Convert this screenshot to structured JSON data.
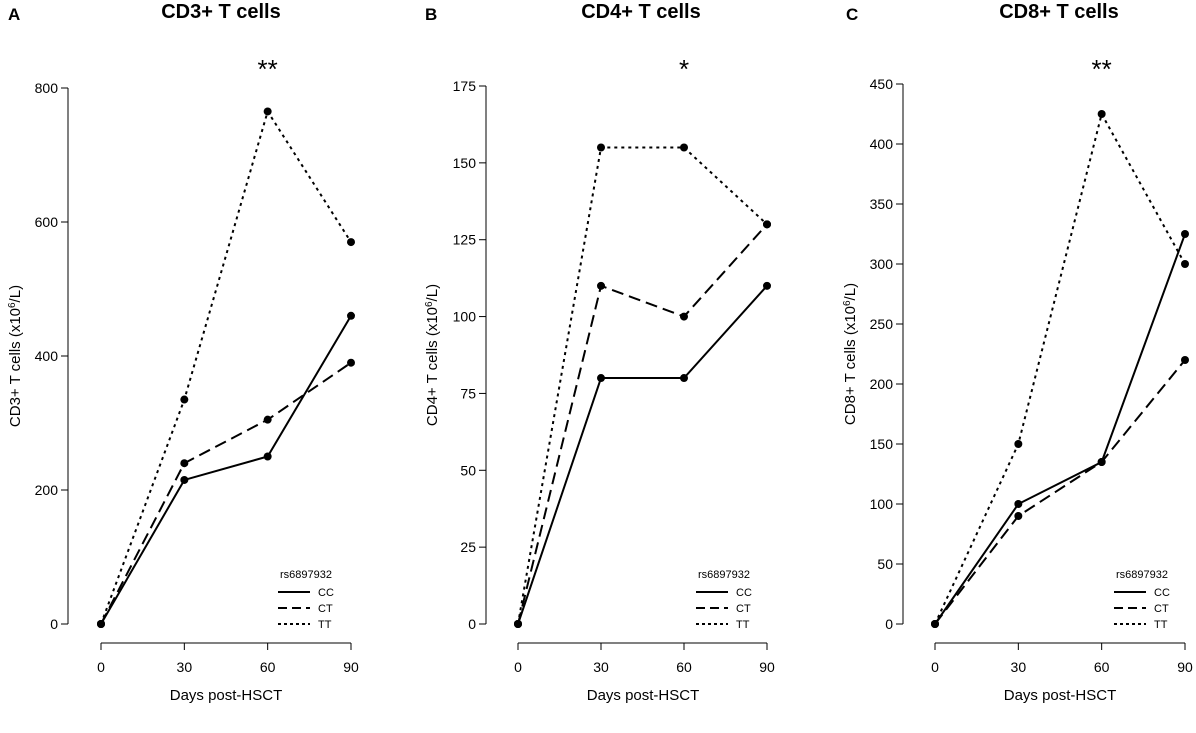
{
  "chart_data": [
    {
      "type": "line",
      "panel": "A",
      "title": "CD3+ T cells",
      "xlabel": "Days post-HSCT",
      "ylabel_main": "CD3+ T cells (x10",
      "ylabel_sup": "6",
      "ylabel_end": "/L)",
      "x": [
        0,
        30,
        60,
        90
      ],
      "xticks": [
        0,
        30,
        60,
        90
      ],
      "yticks": [
        0,
        200,
        400,
        600,
        800
      ],
      "ylim": [
        0,
        800
      ],
      "significance": {
        "label": "**",
        "x": 60
      },
      "legend": {
        "title": "rs6897932",
        "entries": [
          "CC",
          "CT",
          "TT"
        ]
      },
      "series": [
        {
          "name": "CC",
          "style": "solid",
          "values": [
            0,
            215,
            250,
            460
          ]
        },
        {
          "name": "CT",
          "style": "dashed",
          "values": [
            0,
            240,
            305,
            390
          ]
        },
        {
          "name": "TT",
          "style": "dotted",
          "values": [
            0,
            335,
            765,
            570
          ]
        }
      ]
    },
    {
      "type": "line",
      "panel": "B",
      "title": "CD4+ T cells",
      "xlabel": "Days post-HSCT",
      "ylabel_main": "CD4+ T cells (x10",
      "ylabel_sup": "6",
      "ylabel_end": "/L)",
      "x": [
        0,
        30,
        60,
        90
      ],
      "xticks": [
        0,
        30,
        60,
        90
      ],
      "yticks": [
        0,
        25,
        50,
        75,
        100,
        125,
        150,
        175
      ],
      "ylim": [
        0,
        175
      ],
      "significance": {
        "label": "*",
        "x": 60
      },
      "legend": {
        "title": "rs6897932",
        "entries": [
          "CC",
          "CT",
          "TT"
        ]
      },
      "series": [
        {
          "name": "CC",
          "style": "solid",
          "values": [
            0,
            80,
            80,
            110
          ]
        },
        {
          "name": "CT",
          "style": "dashed",
          "values": [
            0,
            110,
            100,
            130
          ]
        },
        {
          "name": "TT",
          "style": "dotted",
          "values": [
            0,
            155,
            155,
            130
          ]
        }
      ]
    },
    {
      "type": "line",
      "panel": "C",
      "title": "CD8+ T cells",
      "xlabel": "Days post-HSCT",
      "ylabel_main": "CD8+ T cells (x10",
      "ylabel_sup": "6",
      "ylabel_end": "/L)",
      "x": [
        0,
        30,
        60,
        90
      ],
      "xticks": [
        0,
        30,
        60,
        90
      ],
      "yticks": [
        0,
        50,
        100,
        150,
        200,
        250,
        300,
        350,
        400,
        450
      ],
      "ylim": [
        0,
        450
      ],
      "significance": {
        "label": "**",
        "x": 60
      },
      "legend": {
        "title": "rs6897932",
        "entries": [
          "CC",
          "CT",
          "TT"
        ]
      },
      "series": [
        {
          "name": "CC",
          "style": "solid",
          "values": [
            0,
            100,
            135,
            325
          ]
        },
        {
          "name": "CT",
          "style": "dashed",
          "values": [
            0,
            90,
            135,
            220
          ]
        },
        {
          "name": "TT",
          "style": "dotted",
          "values": [
            0,
            150,
            425,
            300
          ]
        }
      ]
    }
  ]
}
